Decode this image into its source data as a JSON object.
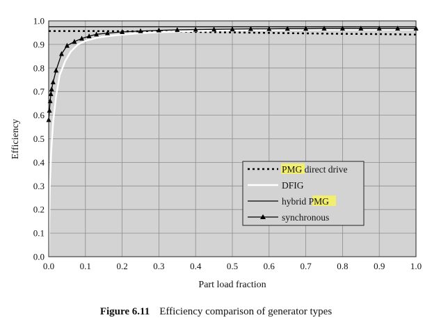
{
  "caption": {
    "label": "Figure 6.11",
    "text": "Efficiency comparison of generator types"
  },
  "chart_data": {
    "type": "line",
    "title": "",
    "xlabel": "Part load fraction",
    "ylabel": "Efficiency",
    "xlim": [
      0,
      1
    ],
    "ylim": [
      0,
      1
    ],
    "xticks": [
      "0.0",
      "0.1",
      "0.2",
      "0.3",
      "0.4",
      "0.5",
      "0.6",
      "0.7",
      "0.8",
      "0.9",
      "1.0"
    ],
    "yticks": [
      "0.0",
      "0.1",
      "0.2",
      "0.3",
      "0.4",
      "0.5",
      "0.6",
      "0.7",
      "0.8",
      "0.9",
      "1.0"
    ],
    "grid": true,
    "background": "#d3d3d3",
    "legend_position": "lower-right",
    "highlight_color": "#f2ee6e",
    "series": [
      {
        "name": "PMG direct drive",
        "name_highlight": "PMG",
        "name_rest": " direct drive",
        "style": "dotted",
        "color": "#000000",
        "x": [
          0,
          0.1,
          0.2,
          0.3,
          0.4,
          0.5,
          0.6,
          0.7,
          0.8,
          0.9,
          1.0
        ],
        "y": [
          0.957,
          0.957,
          0.956,
          0.955,
          0.953,
          0.951,
          0.949,
          0.947,
          0.945,
          0.944,
          0.942
        ]
      },
      {
        "name": "DFIG",
        "style": "solid",
        "color": "#ffffff",
        "x": [
          0,
          0.003,
          0.007,
          0.012,
          0.02,
          0.03,
          0.045,
          0.06,
          0.08,
          0.1,
          0.13,
          0.16,
          0.2,
          0.25,
          0.3,
          0.4,
          0.5,
          0.6,
          0.7,
          0.8,
          0.9,
          1.0
        ],
        "y": [
          0.0,
          0.3,
          0.45,
          0.57,
          0.68,
          0.77,
          0.83,
          0.87,
          0.9,
          0.915,
          0.928,
          0.935,
          0.942,
          0.948,
          0.952,
          0.957,
          0.96,
          0.962,
          0.963,
          0.963,
          0.963,
          0.963
        ]
      },
      {
        "name": "hybrid PMG",
        "name_highlight": "PMG",
        "name_rest_before": "hybrid ",
        "style": "solid",
        "color": "#000000",
        "x": [
          0,
          1.0
        ],
        "y": [
          0.975,
          0.975
        ]
      },
      {
        "name": "synchronous",
        "style": "solid-triangle-markers",
        "color": "#000000",
        "x": [
          0.0,
          0.002,
          0.004,
          0.006,
          0.008,
          0.012,
          0.02,
          0.035,
          0.05,
          0.07,
          0.09,
          0.11,
          0.13,
          0.16,
          0.2,
          0.25,
          0.3,
          0.35,
          0.4,
          0.45,
          0.5,
          0.55,
          0.6,
          0.65,
          0.7,
          0.75,
          0.8,
          0.85,
          0.9,
          0.95,
          1.0
        ],
        "y": [
          0.58,
          0.62,
          0.66,
          0.69,
          0.71,
          0.74,
          0.79,
          0.86,
          0.895,
          0.912,
          0.925,
          0.935,
          0.943,
          0.948,
          0.953,
          0.957,
          0.96,
          0.962,
          0.963,
          0.964,
          0.965,
          0.966,
          0.966,
          0.967,
          0.967,
          0.968,
          0.968,
          0.968,
          0.968,
          0.968,
          0.968
        ]
      }
    ]
  }
}
